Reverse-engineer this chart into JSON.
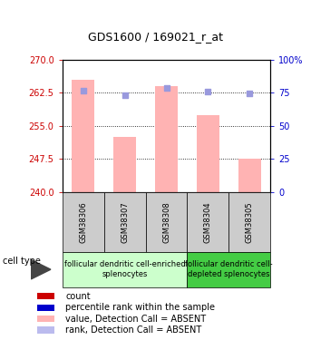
{
  "title": "GDS1600 / 169021_r_at",
  "samples": [
    "GSM38306",
    "GSM38307",
    "GSM38308",
    "GSM38304",
    "GSM38305"
  ],
  "bar_values": [
    265.5,
    252.5,
    264.0,
    257.5,
    247.5
  ],
  "rank_dots_left": [
    263.0,
    262.0,
    263.5,
    262.8,
    262.3
  ],
  "ylim_left": [
    240,
    270
  ],
  "ylim_right": [
    0,
    100
  ],
  "yticks_left": [
    240,
    247.5,
    255,
    262.5,
    270
  ],
  "yticks_right": [
    0,
    25,
    50,
    75,
    100
  ],
  "bar_color": "#ffb3b3",
  "bar_bottom": 240,
  "dot_color": "#9999dd",
  "group1_samples": [
    0,
    1,
    2
  ],
  "group2_samples": [
    3,
    4
  ],
  "group1_label": "follicular dendritic cell-enriched\nsplenocytes",
  "group2_label": "follicular dendritic cell-\ndepleted splenocytes",
  "group1_color": "#ccffcc",
  "group2_color": "#44cc44",
  "sample_bg_color": "#cccccc",
  "cell_type_label": "cell type",
  "legend_items": [
    {
      "color": "#cc0000",
      "label": "count"
    },
    {
      "color": "#0000cc",
      "label": "percentile rank within the sample"
    },
    {
      "color": "#ffb3b3",
      "label": "value, Detection Call = ABSENT"
    },
    {
      "color": "#bbbbee",
      "label": "rank, Detection Call = ABSENT"
    }
  ],
  "left_axis_color": "#cc0000",
  "right_axis_color": "#0000cc",
  "title_fontsize": 9,
  "tick_fontsize": 7,
  "sample_fontsize": 6,
  "group_fontsize": 6,
  "legend_fontsize": 7,
  "cell_type_fontsize": 7
}
